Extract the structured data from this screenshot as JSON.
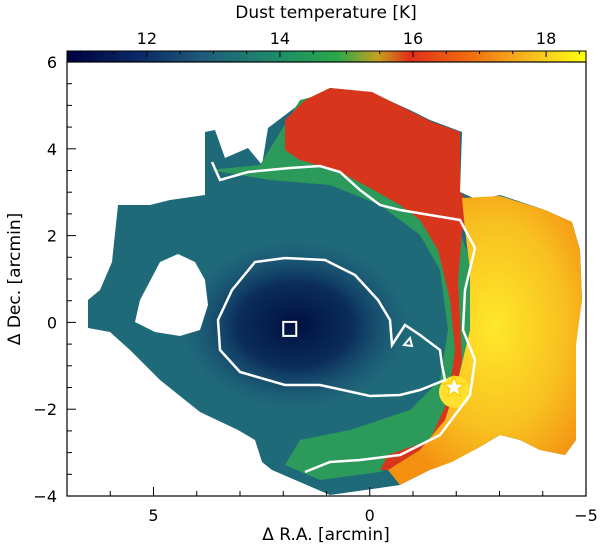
{
  "chart_data": {
    "type": "heatmap",
    "colorbar": {
      "label": "Dust temperature [K]",
      "ticks": [
        12,
        14,
        16,
        18
      ],
      "range": [
        10.8,
        18.6
      ],
      "colormap": [
        "#000040",
        "#0a2a66",
        "#1f5a7a",
        "#1e8a6a",
        "#2aa84a",
        "#c8a020",
        "#e03018",
        "#f07010",
        "#f8c020",
        "#ffff10"
      ]
    },
    "x_axis": {
      "label": "Δ R.A. [arcmin]",
      "range": [
        7.0,
        -5.0
      ],
      "ticks": [
        5,
        0,
        -5
      ]
    },
    "y_axis": {
      "label": "Δ Dec. [arcmin]",
      "range": [
        -4.0,
        6.0
      ],
      "ticks": [
        6,
        4,
        2,
        0,
        -2,
        -4
      ]
    },
    "markers": [
      {
        "shape": "square",
        "color": "#ffffff",
        "x": 1.85,
        "y": -0.15
      },
      {
        "shape": "star",
        "color": "#ffffff",
        "x": -1.95,
        "y": -1.5
      }
    ],
    "contour_color": "#ffffff",
    "grid": false
  }
}
